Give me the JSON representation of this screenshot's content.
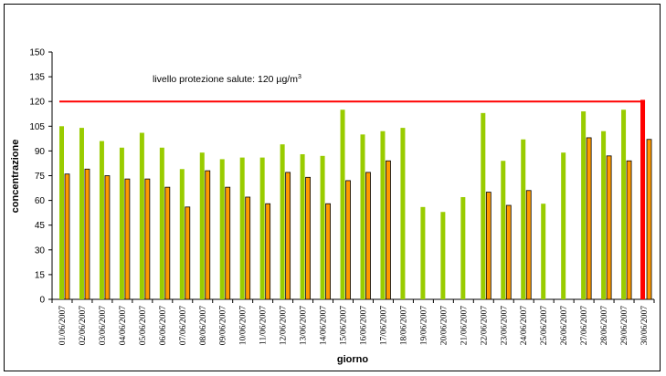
{
  "chart_data": {
    "type": "bar",
    "xlabel": "giorno",
    "ylabel": "concentrazione",
    "ylim": [
      0,
      150
    ],
    "yticks": [
      0,
      15,
      30,
      45,
      60,
      75,
      90,
      105,
      120,
      135,
      150
    ],
    "categories": [
      "01/06/2007",
      "02/06/2007",
      "03/06/2007",
      "04/06/2007",
      "05/06/2007",
      "06/06/2007",
      "07/06/2007",
      "08/06/2007",
      "09/06/2007",
      "10/06/2007",
      "11/06/2007",
      "12/06/2007",
      "13/06/2007",
      "14/06/2007",
      "15/06/2007",
      "16/06/2007",
      "17/06/2007",
      "18/06/2007",
      "19/06/2007",
      "20/06/2007",
      "21/06/2007",
      "22/06/2007",
      "23/06/2007",
      "24/06/2007",
      "25/06/2007",
      "26/06/2007",
      "27/06/2007",
      "28/06/2007",
      "29/06/2007",
      "30/06/2007"
    ],
    "series": [
      {
        "color": "#99cc00",
        "values": [
          105,
          104,
          96,
          92,
          101,
          92,
          79,
          89,
          85,
          86,
          86,
          94,
          88,
          87,
          115,
          100,
          102,
          104,
          56,
          53,
          62,
          113,
          84,
          97,
          58,
          89,
          114,
          102,
          115,
          null
        ]
      },
      {
        "color": "#ff9900",
        "values": [
          76,
          79,
          75,
          73,
          73,
          68,
          56,
          78,
          68,
          62,
          58,
          77,
          74,
          58,
          72,
          77,
          84,
          null,
          null,
          null,
          null,
          65,
          57,
          66,
          null,
          null,
          98,
          87,
          84,
          97
        ]
      }
    ],
    "threshold": {
      "value": 120,
      "color": "#ff0000",
      "label": "livello protezione salute:  120 µg/m",
      "label_sup": "3"
    },
    "last_day_bar": {
      "value": 121,
      "color": "#ff0000"
    },
    "grid": false
  }
}
